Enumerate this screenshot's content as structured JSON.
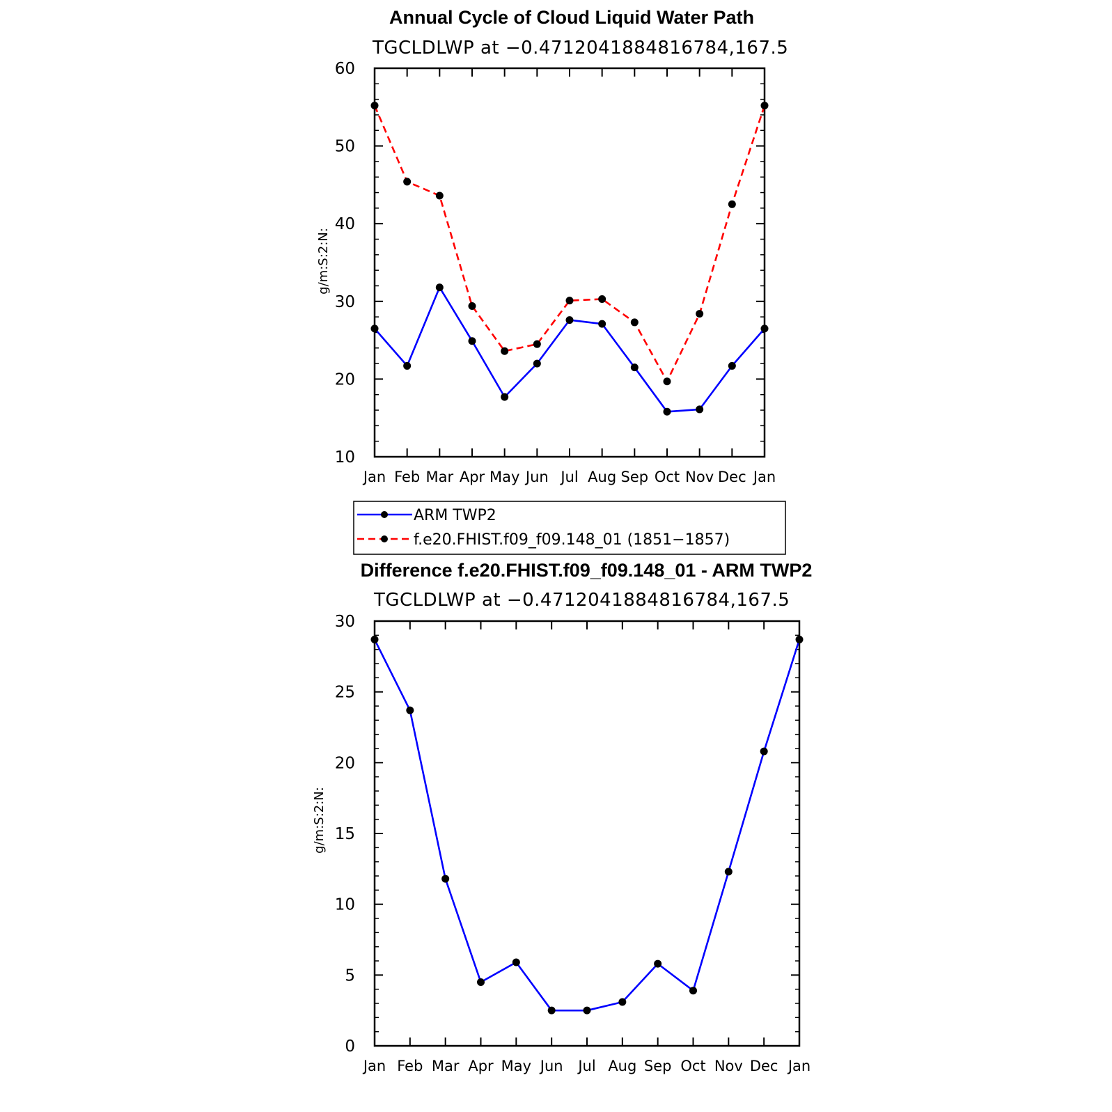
{
  "chart_data": [
    {
      "type": "line",
      "title": "Annual Cycle of Cloud Liquid Water Path",
      "subtitle": "TGCLDLWP at −0.4712041884816784,167.5",
      "ylabel": "g/m:S:2:N:",
      "xlabel": "",
      "categories": [
        "Jan",
        "Feb",
        "Mar",
        "Apr",
        "May",
        "Jun",
        "Jul",
        "Aug",
        "Sep",
        "Oct",
        "Nov",
        "Dec",
        "Jan"
      ],
      "ylim": [
        10,
        60
      ],
      "yticks": [
        "10",
        "20",
        "30",
        "40",
        "50",
        "60"
      ],
      "series": [
        {
          "name": "ARM TWP2",
          "color": "#0000ff",
          "dash": "solid",
          "values": [
            26.5,
            21.7,
            31.8,
            24.9,
            17.7,
            22.0,
            27.6,
            27.1,
            21.5,
            15.8,
            16.1,
            21.7,
            26.5
          ]
        },
        {
          "name": "f.e20.FHIST.f09_f09.148_01 (1851−1857)",
          "color": "#ff0000",
          "dash": "dashed",
          "values": [
            55.2,
            45.4,
            43.6,
            29.4,
            23.6,
            24.5,
            30.1,
            30.3,
            27.3,
            19.7,
            28.4,
            42.5,
            55.2
          ]
        }
      ],
      "legend": {
        "placement": "below"
      }
    },
    {
      "type": "line",
      "title": "Difference f.e20.FHIST.f09_f09.148_01 - ARM TWP2",
      "subtitle": "TGCLDLWP at −0.4712041884816784,167.5",
      "ylabel": "g/m:S:2:N:",
      "xlabel": "",
      "categories": [
        "Jan",
        "Feb",
        "Mar",
        "Apr",
        "May",
        "Jun",
        "Jul",
        "Aug",
        "Sep",
        "Oct",
        "Nov",
        "Dec",
        "Jan"
      ],
      "ylim": [
        0,
        30
      ],
      "yticks": [
        "0",
        "5",
        "10",
        "15",
        "20",
        "25",
        "30"
      ],
      "series": [
        {
          "name": "Difference",
          "color": "#0000ff",
          "dash": "solid",
          "values": [
            28.7,
            23.7,
            11.8,
            4.5,
            5.9,
            2.5,
            2.5,
            3.1,
            5.8,
            3.9,
            12.3,
            20.8,
            28.7
          ]
        }
      ]
    }
  ]
}
